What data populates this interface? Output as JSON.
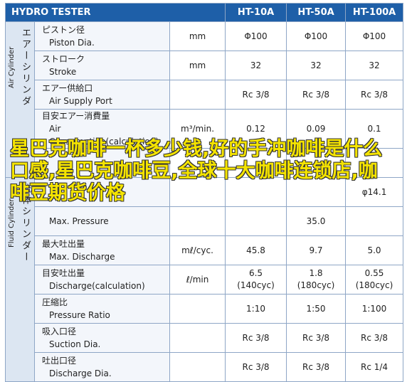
{
  "header": {
    "title": "HYDRO TESTER",
    "models": [
      "HT-10A",
      "HT-50A",
      "HT-100A"
    ]
  },
  "groups": [
    {
      "label_jp": "エアーシリンダ",
      "label_en": "Air Cylinder",
      "rows": [
        {
          "jp": "ピストン径",
          "en": "Piston Dia.",
          "unit": "mm",
          "values": [
            "Φ100",
            "Φ100",
            "Φ100"
          ]
        },
        {
          "jp": "ストローク",
          "en": "Stroke",
          "unit": "mm",
          "values": [
            "32",
            "32",
            "32"
          ]
        },
        {
          "jp": "エアー供給口",
          "en": "Air Supply Port",
          "values": [
            "Rc 3/8",
            "Rc 3/8",
            "Rc 3/8"
          ]
        },
        {
          "jp": "目安エアー消費量",
          "en": "Air Consumption(calculation)",
          "unit": "m³/min.",
          "values": [
            "0.12",
            "0.09",
            "0.1"
          ]
        },
        {
          "values": [
            null,
            null,
            null
          ]
        }
      ]
    },
    {
      "label_jp": "流体シリンダー",
      "label_en": "Fluid Cylinder",
      "rows": [
        {
          "values": [
            null,
            null,
            "φ14.1"
          ]
        },
        {
          "en": "Max. Pressure",
          "values": [
            null,
            "35.0",
            null
          ]
        },
        {
          "jp": "最大吐出量",
          "en": "Max. Discharge",
          "unit": "mℓ/cyc.",
          "values": [
            "45.8",
            "9.7",
            "5.0"
          ]
        },
        {
          "jp": "目安吐出量",
          "en": "Discharge(calculation)",
          "unit": "ℓ/min",
          "values": [
            "6.5\n(140cyc)",
            "1.8\n(180cyc)",
            "0.55\n(180cyc)"
          ]
        },
        {
          "jp": "圧縮比",
          "en": "Pressure Ratio",
          "values": [
            "1:10",
            "1:50",
            "1:100"
          ]
        },
        {
          "jp": "吸入口径",
          "en": "Suction Dia.",
          "values": [
            "Rc 3/8",
            "Rc 3/8",
            "Rc 3/8"
          ]
        },
        {
          "jp": "吐出口径",
          "en": "Discharge Dia.",
          "values": [
            "Rc 3/8",
            "Rc 3/8",
            "Rc 1/4"
          ]
        }
      ]
    }
  ],
  "overlay": "星巴克咖啡一杯多少钱,好的手冲咖啡是什么口感,星巴克咖啡豆,全球十大咖啡连锁店,咖啡豆期货价格"
}
